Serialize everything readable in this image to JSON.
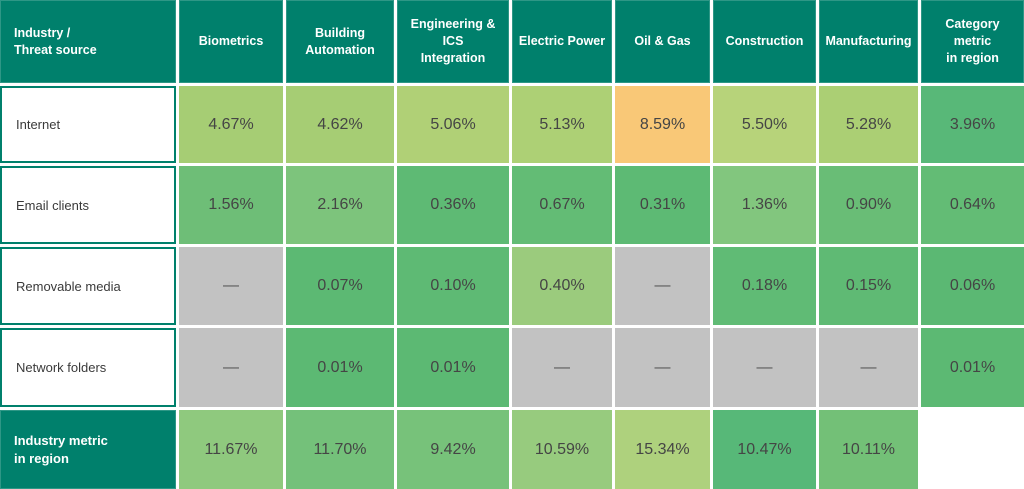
{
  "colors": {
    "header_teal": "#00806c",
    "missing_gray": "#c2c2c2",
    "warning_orange": "#f9c877",
    "value_text": "#454545",
    "label_text": "#3a3a3a",
    "gap_white": "#ffffff"
  },
  "table": {
    "corner_label": "Industry /\nThreat source",
    "columns": [
      "Biometrics",
      "Building\nAutomation",
      "Engineering & ICS\nIntegration",
      "Electric Power",
      "Oil & Gas",
      "Construction",
      "Manufacturing",
      "Category metric\nin region"
    ],
    "rows": [
      {
        "label": "Internet",
        "label_variant": "white",
        "cells": [
          {
            "value": "4.67%",
            "bg": "#a6cd74"
          },
          {
            "value": "4.62%",
            "bg": "#a6cd74"
          },
          {
            "value": "5.06%",
            "bg": "#b0d076"
          },
          {
            "value": "5.13%",
            "bg": "#add075"
          },
          {
            "value": "8.59%",
            "bg": "#f9c877"
          },
          {
            "value": "5.50%",
            "bg": "#b7d37a"
          },
          {
            "value": "5.28%",
            "bg": "#abcf74"
          },
          {
            "value": "3.96%",
            "bg": "#58b878"
          }
        ]
      },
      {
        "label": "Email clients",
        "label_variant": "white",
        "cells": [
          {
            "value": "1.56%",
            "bg": "#6ebe77"
          },
          {
            "value": "2.16%",
            "bg": "#7dc47c"
          },
          {
            "value": "0.36%",
            "bg": "#5eba74"
          },
          {
            "value": "0.67%",
            "bg": "#63bc75"
          },
          {
            "value": "0.31%",
            "bg": "#5dba74"
          },
          {
            "value": "1.36%",
            "bg": "#82c67e"
          },
          {
            "value": "0.90%",
            "bg": "#69bd76"
          },
          {
            "value": "0.64%",
            "bg": "#63bc75"
          }
        ]
      },
      {
        "label": "Removable media",
        "label_variant": "white",
        "cells": [
          {
            "value": "—",
            "bg": "#c2c2c2"
          },
          {
            "value": "0.07%",
            "bg": "#5cb973"
          },
          {
            "value": "0.10%",
            "bg": "#5eba74"
          },
          {
            "value": "0.40%",
            "bg": "#9bcb7d"
          },
          {
            "value": "—",
            "bg": "#c2c2c2"
          },
          {
            "value": "0.18%",
            "bg": "#60bb75"
          },
          {
            "value": "0.15%",
            "bg": "#5fba74"
          },
          {
            "value": "0.06%",
            "bg": "#5bb873"
          }
        ]
      },
      {
        "label": "Network folders",
        "label_variant": "white",
        "cells": [
          {
            "value": "—",
            "bg": "#c2c2c2"
          },
          {
            "value": "0.01%",
            "bg": "#5cb973"
          },
          {
            "value": "0.01%",
            "bg": "#5cb973"
          },
          {
            "value": "—",
            "bg": "#c2c2c2"
          },
          {
            "value": "—",
            "bg": "#c2c2c2"
          },
          {
            "value": "—",
            "bg": "#c2c2c2"
          },
          {
            "value": "—",
            "bg": "#c2c2c2"
          },
          {
            "value": "0.01%",
            "bg": "#5cb973"
          }
        ]
      },
      {
        "label": "Industry metric\nin region",
        "label_variant": "teal",
        "cells": [
          {
            "value": "11.67%",
            "bg": "#8fc97e"
          },
          {
            "value": "11.70%",
            "bg": "#74c17a"
          },
          {
            "value": "9.42%",
            "bg": "#77c27a"
          },
          {
            "value": "10.59%",
            "bg": "#97cb7e"
          },
          {
            "value": "15.34%",
            "bg": "#aed17d"
          },
          {
            "value": "10.47%",
            "bg": "#57b878"
          },
          {
            "value": "10.11%",
            "bg": "#73c077"
          },
          {
            "value": "",
            "bg": "#ffffff"
          }
        ]
      }
    ]
  },
  "chart_data": {
    "type": "heatmap",
    "title": "Industry / Threat source",
    "columns": [
      "Biometrics",
      "Building Automation",
      "Engineering & ICS Integration",
      "Electric Power",
      "Oil & Gas",
      "Construction",
      "Manufacturing",
      "Category metric in region"
    ],
    "rows": [
      "Internet",
      "Email clients",
      "Removable media",
      "Network folders",
      "Industry metric in region"
    ],
    "values_percent": [
      [
        4.67,
        4.62,
        5.06,
        5.13,
        8.59,
        5.5,
        5.28,
        3.96
      ],
      [
        1.56,
        2.16,
        0.36,
        0.67,
        0.31,
        1.36,
        0.9,
        0.64
      ],
      [
        null,
        0.07,
        0.1,
        0.4,
        null,
        0.18,
        0.15,
        0.06
      ],
      [
        null,
        0.01,
        0.01,
        null,
        null,
        null,
        null,
        0.01
      ],
      [
        11.67,
        11.7,
        9.42,
        10.59,
        15.34,
        10.47,
        10.11,
        null
      ]
    ],
    "missing_marker": "—",
    "legend_position": "none",
    "grid": "white gaps between colored cells; color encodes magnitude (green low → orange high); gray = no data"
  }
}
